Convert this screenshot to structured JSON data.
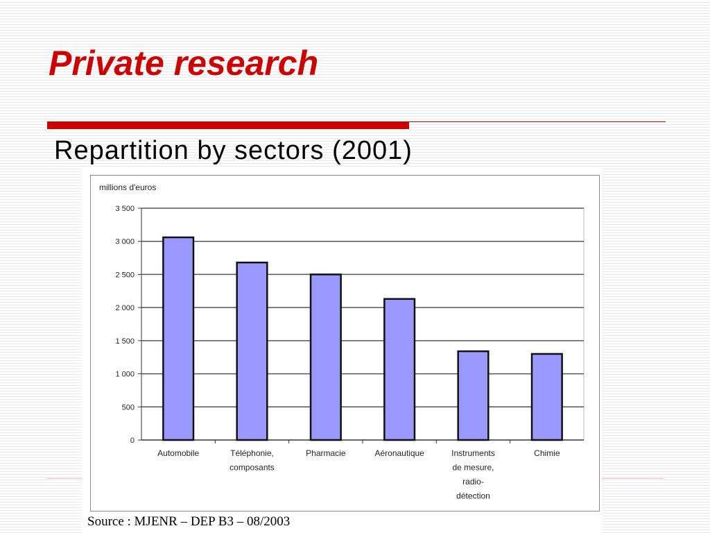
{
  "slide": {
    "title": "Private research",
    "subtitle": "Repartition by sectors (2001)",
    "source": "Source : MJENR – DEP B3 – 08/2003"
  },
  "colors": {
    "title": "#cc0000",
    "rule": "#cc0000",
    "bar_fill": "#9999ff",
    "gridline": "#555555"
  },
  "chart_data": {
    "type": "bar",
    "ylabel": "millions d'euros",
    "ylim": [
      0,
      3500
    ],
    "yticks": [
      0,
      500,
      1000,
      1500,
      2000,
      2500,
      3000,
      3500
    ],
    "ytick_labels": [
      "0",
      "500",
      "1 000",
      "1 500",
      "2 000",
      "2 500",
      "3 000",
      "3 500"
    ],
    "grid": true,
    "categories": [
      [
        "Automobile"
      ],
      [
        "Téléphonie,",
        "composants"
      ],
      [
        "Pharmacie"
      ],
      [
        "Aéronautique"
      ],
      [
        "Instruments",
        "de mesure,",
        "radio-",
        "détection"
      ],
      [
        "Chimie"
      ]
    ],
    "values": [
      3060,
      2680,
      2500,
      2130,
      1340,
      1300
    ]
  }
}
